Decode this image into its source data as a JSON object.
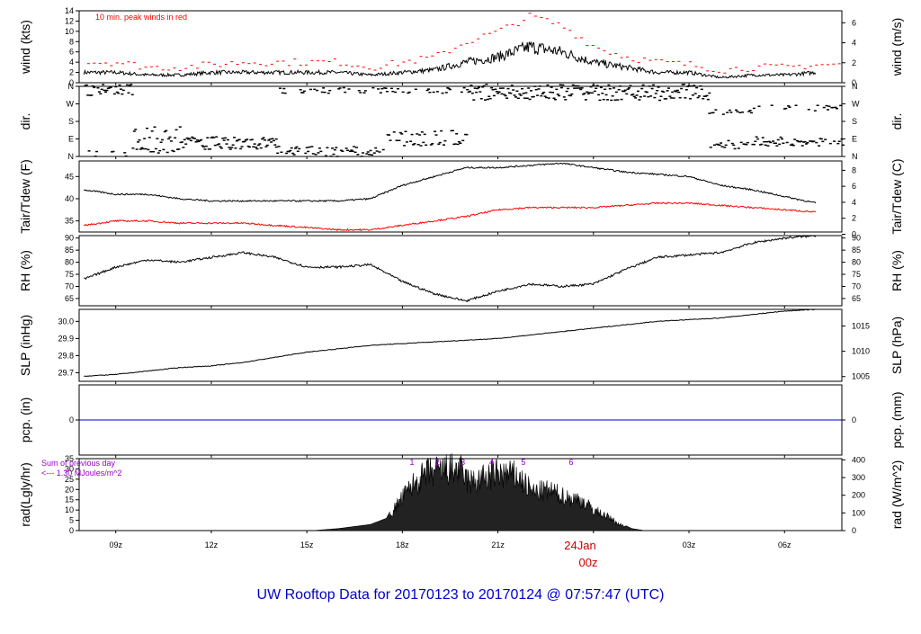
{
  "footer_title": "UW Rooftop Data for 20170123  to  20170124 @ 07:57:47  (UTC)",
  "colors": {
    "trace": "#000000",
    "peak": "#ff0000",
    "dew": "#ff0000",
    "pcp": "#0000cc",
    "title": "#0000cc",
    "rad_note": "#9900cc",
    "date": "#cc0000"
  },
  "x_axis": {
    "ticks": [
      "09z",
      "12z",
      "15z",
      "18z",
      "21z",
      "00z",
      "03z",
      "06z"
    ],
    "date_label": "24Jan",
    "date_hour": "00z"
  },
  "chart_data": [
    {
      "type": "line",
      "panel": "wind",
      "ylabel": "wind (kts)",
      "ylabel_right": "wind (m/s)",
      "ylim": [
        0,
        14
      ],
      "ticks_left": [
        "0",
        "2",
        "4",
        "6",
        "8",
        "10",
        "12",
        "14"
      ],
      "ticks_right": [
        "0",
        "2",
        "4",
        "6"
      ],
      "annotation": "10 min. peak winds in red",
      "series": [
        {
          "x": [
            8,
            9,
            10,
            11,
            12,
            13,
            14,
            15,
            16,
            17,
            18,
            19,
            20,
            21,
            22,
            23,
            24,
            25,
            26,
            27,
            28,
            29,
            30,
            31
          ],
          "values": [
            2,
            2,
            1.5,
            1.5,
            2,
            2,
            2,
            2,
            2,
            1.5,
            2,
            2.5,
            4,
            5,
            7,
            6,
            4,
            3,
            2,
            2,
            1,
            1.5,
            1.5,
            2
          ]
        },
        {
          "x": [
            8,
            9,
            10,
            11,
            12,
            13,
            14,
            15,
            16,
            17,
            18,
            19,
            20,
            21,
            22,
            23,
            24,
            25,
            26,
            27,
            28,
            29,
            30,
            31
          ],
          "values": [
            4,
            4,
            3,
            3,
            3.5,
            4,
            4,
            4,
            4,
            3,
            4,
            5,
            8,
            10,
            13,
            11,
            7,
            5,
            4,
            3.5,
            2.5,
            3,
            3,
            3.5
          ]
        }
      ]
    },
    {
      "type": "scatter",
      "panel": "dir",
      "ylabel": "dir.",
      "ylabel_right": "dir.",
      "categories": [
        "N",
        "E",
        "S",
        "W",
        "N"
      ]
    },
    {
      "type": "line",
      "panel": "temp",
      "ylabel": "Tair/Tdew (F)",
      "ylabel_right": "Tair/Tdew (C)",
      "ylim": [
        32.5,
        48.5
      ],
      "ticks_left": [
        "35",
        "40",
        "45"
      ],
      "ticks_right": [
        "0",
        "2",
        "4",
        "6",
        "8"
      ],
      "series": [
        {
          "x": [
            8,
            9,
            10,
            11,
            12,
            13,
            14,
            15,
            16,
            17,
            18,
            19,
            20,
            21,
            22,
            23,
            24,
            25,
            26,
            27,
            28,
            29,
            30,
            31
          ],
          "values": [
            42,
            41,
            41,
            40,
            39.5,
            39.5,
            39.5,
            39.5,
            39.5,
            40,
            43,
            45,
            47,
            47,
            47.5,
            48,
            47,
            46,
            45.5,
            45,
            43,
            42,
            40.5,
            39
          ]
        },
        {
          "x": [
            8,
            9,
            10,
            11,
            12,
            13,
            14,
            15,
            16,
            17,
            18,
            19,
            20,
            21,
            22,
            23,
            24,
            25,
            26,
            27,
            28,
            29,
            30,
            31
          ],
          "values": [
            34,
            35,
            35,
            34.5,
            34.5,
            34.5,
            34,
            33.5,
            33,
            33,
            34,
            35,
            36,
            37.5,
            38,
            38,
            38,
            38.5,
            39,
            39,
            38.5,
            38,
            37.5,
            37
          ]
        }
      ]
    },
    {
      "type": "line",
      "panel": "rh",
      "ylabel": "RH (%)",
      "ylabel_right": "RH (%)",
      "ylim": [
        62,
        91
      ],
      "ticks_left": [
        "65",
        "70",
        "75",
        "80",
        "85",
        "90"
      ],
      "ticks_right": [
        "65",
        "70",
        "75",
        "80",
        "85",
        "90"
      ],
      "series": [
        {
          "x": [
            8,
            9,
            10,
            11,
            12,
            13,
            14,
            15,
            16,
            17,
            18,
            19,
            20,
            21,
            22,
            23,
            24,
            25,
            26,
            27,
            28,
            29,
            30,
            31
          ],
          "values": [
            73,
            78,
            81,
            80,
            82,
            84,
            82,
            78,
            78,
            79,
            72,
            67,
            64,
            68,
            71,
            70,
            71,
            77,
            82,
            83,
            84,
            88,
            90,
            91
          ]
        }
      ]
    },
    {
      "type": "line",
      "panel": "slp",
      "ylabel": "SLP (inHg)",
      "ylabel_right": "SLP (hPa)",
      "ylim": [
        29.65,
        30.07
      ],
      "ticks_left": [
        "29.7",
        "29.8",
        "29.9",
        "30.0"
      ],
      "ticks_right": [
        "1005",
        "1010",
        "1015"
      ],
      "series": [
        {
          "x": [
            8,
            9,
            10,
            11,
            12,
            13,
            14,
            15,
            16,
            17,
            18,
            19,
            20,
            21,
            22,
            23,
            24,
            25,
            26,
            27,
            28,
            29,
            30,
            31
          ],
          "values": [
            29.68,
            29.69,
            29.71,
            29.73,
            29.74,
            29.76,
            29.79,
            29.82,
            29.84,
            29.86,
            29.87,
            29.88,
            29.89,
            29.9,
            29.92,
            29.94,
            29.96,
            29.98,
            30.0,
            30.01,
            30.02,
            30.04,
            30.06,
            30.07
          ]
        }
      ]
    },
    {
      "type": "line",
      "panel": "pcp",
      "ylabel": "pcp. (in)",
      "ylabel_right": "pcp. (mm)",
      "ylim": [
        -1,
        1
      ],
      "ticks_left": [
        "0"
      ],
      "ticks_right": [
        "0"
      ],
      "series": [
        {
          "x": [
            8,
            31.8
          ],
          "values": [
            0,
            0
          ]
        }
      ]
    },
    {
      "type": "area",
      "panel": "rad",
      "ylabel": "rad(Lgly/hr)",
      "ylabel_right": "rad (W/m^2)",
      "ylim": [
        0,
        35
      ],
      "ticks_left": [
        "0",
        "5",
        "10",
        "15",
        "20",
        "25",
        "30",
        "35"
      ],
      "ticks_right": [
        "0",
        "100",
        "200",
        "300",
        "400"
      ],
      "note_line1": "Sum of previous day",
      "note_line2": "<--- 1.30 MJoules/m^2",
      "markers": [
        "1",
        "2",
        "3",
        "4",
        "5",
        "6"
      ],
      "series": [
        {
          "x": [
            15.2,
            16,
            17,
            17.5,
            17.9,
            18.3,
            18.8,
            19.4,
            19.8,
            20.1,
            20.6,
            21.0,
            21.6,
            22.1,
            22.6,
            23.1,
            23.6,
            24.0,
            24.5,
            24.8,
            25.2,
            25.6
          ],
          "values": [
            0,
            1,
            3,
            6,
            18,
            28,
            36,
            38,
            38,
            30,
            33,
            36,
            34,
            24,
            25,
            21,
            19,
            13,
            8,
            4,
            1,
            0
          ]
        }
      ]
    }
  ]
}
